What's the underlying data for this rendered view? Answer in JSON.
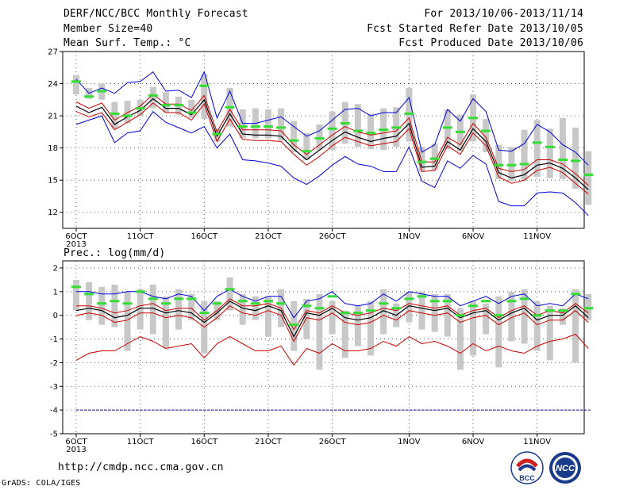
{
  "header": {
    "title": "DERF/NCC/BCC Monthly Forecast",
    "member_size": "Member Size=40",
    "variable": "Mean Surf. Temp.: °C",
    "forecast_period": "For 2013/10/06-2013/11/14",
    "started_refer": "Fcst Started Refer Date 2013/10/05",
    "produced": "Fcst Produced Date 2013/10/06"
  },
  "footer": {
    "url": "http://cmdp.ncc.cma.gov.cn",
    "grads": "GrADS: COLA/IGES",
    "logo_bcc_text": "BCC",
    "logo_ncc_text": "NCC"
  },
  "colors": {
    "envelope": "#0000dd",
    "spread": "#cc0000",
    "mean": "#000000",
    "median": "#33dd33",
    "box": "#c8c8c8",
    "reference": "#0000aa",
    "grid": "#333333"
  },
  "chart_data": [
    {
      "type": "line",
      "subtitle": "Mean Surf. Temp.: °C",
      "ylim": [
        10.5,
        27
      ],
      "yticks": [
        12,
        15,
        18,
        21,
        24,
        27
      ],
      "xticks": [
        {
          "day": 0,
          "label": "6OCT",
          "sublabel": "2013"
        },
        {
          "day": 5,
          "label": "11OCT"
        },
        {
          "day": 10,
          "label": "16OCT"
        },
        {
          "day": 15,
          "label": "21OCT"
        },
        {
          "day": 20,
          "label": "26OCT"
        },
        {
          "day": 26,
          "label": "1NOV"
        },
        {
          "day": 31,
          "label": "6NOV"
        },
        {
          "day": 36,
          "label": "11NOV"
        }
      ],
      "grid": true,
      "box_low": [
        23.0,
        22.6,
        22.5,
        19.8,
        20.3,
        21.0,
        21.7,
        21.3,
        21.1,
        20.8,
        20.7,
        18.6,
        20.0,
        18.9,
        18.9,
        18.9,
        18.7,
        17.6,
        16.9,
        17.8,
        17.8,
        18.4,
        18.1,
        17.9,
        17.8,
        18.1,
        18.6,
        15.8,
        15.9,
        17.9,
        17.7,
        18.6,
        17.6,
        15.1,
        14.9,
        14.9,
        15.3,
        15.2,
        15.1,
        14.2,
        12.7
      ],
      "box_high": [
        24.8,
        23.6,
        24.0,
        22.3,
        22.4,
        22.5,
        23.7,
        23.2,
        22.8,
        22.5,
        24.9,
        19.8,
        23.6,
        21.6,
        21.7,
        21.6,
        21.7,
        20.5,
        19.4,
        20.2,
        21.4,
        22.3,
        22.1,
        21.2,
        21.7,
        21.8,
        23.6,
        18.1,
        18.4,
        21.6,
        21.1,
        23.0,
        20.7,
        18.3,
        18.1,
        19.7,
        20.6,
        19.8,
        20.8,
        19.9,
        17.7
      ],
      "median": [
        24.2,
        22.8,
        23.3,
        21.2,
        21.0,
        21.7,
        22.9,
        22.0,
        22.0,
        21.3,
        23.8,
        19.3,
        21.8,
        20.0,
        20.0,
        20.0,
        19.9,
        18.7,
        17.7,
        18.9,
        19.8,
        20.3,
        19.6,
        19.4,
        19.7,
        19.9,
        21.2,
        16.7,
        17.0,
        19.9,
        19.5,
        20.8,
        19.6,
        16.4,
        16.4,
        16.5,
        18.5,
        18.1,
        16.9,
        16.8,
        15.5
      ],
      "max": [
        24.4,
        23.1,
        23.6,
        23.1,
        24.1,
        24.2,
        25.1,
        23.3,
        23.4,
        22.7,
        25.1,
        20.8,
        23.3,
        20.3,
        20.3,
        20.6,
        20.9,
        20.0,
        19.1,
        19.6,
        20.6,
        21.6,
        21.7,
        21.0,
        21.3,
        21.3,
        22.7,
        17.6,
        18.3,
        21.6,
        20.5,
        22.6,
        21.4,
        17.8,
        17.7,
        18.4,
        20.2,
        19.5,
        18.3,
        17.6,
        16.4
      ],
      "high": [
        22.3,
        21.7,
        22.2,
        20.6,
        21.3,
        21.9,
        23.0,
        22.1,
        22.1,
        21.5,
        22.9,
        19.5,
        21.6,
        19.7,
        19.7,
        19.7,
        19.6,
        18.3,
        17.4,
        18.3,
        19.2,
        20.0,
        19.5,
        19.2,
        19.4,
        19.6,
        20.8,
        16.7,
        16.7,
        19.0,
        18.3,
        20.3,
        19.0,
        16.1,
        15.8,
        16.0,
        16.9,
        16.9,
        16.5,
        15.6,
        14.5
      ],
      "mean": [
        21.9,
        21.3,
        21.8,
        20.2,
        20.9,
        21.5,
        22.6,
        21.7,
        21.7,
        21.1,
        22.5,
        19.1,
        21.2,
        19.3,
        19.2,
        19.2,
        19.1,
        17.9,
        16.9,
        17.8,
        18.7,
        19.5,
        19.0,
        18.6,
        18.9,
        19.1,
        20.3,
        16.2,
        16.3,
        18.6,
        17.8,
        19.8,
        18.6,
        15.7,
        15.2,
        15.5,
        16.4,
        16.6,
        16.1,
        15.2,
        14.1
      ],
      "low": [
        21.4,
        20.9,
        21.3,
        19.7,
        20.4,
        21.1,
        22.2,
        21.3,
        21.3,
        20.6,
        22.1,
        18.6,
        20.7,
        18.8,
        18.7,
        18.7,
        18.6,
        17.4,
        16.4,
        17.2,
        18.2,
        19.0,
        18.6,
        18.2,
        18.4,
        18.6,
        19.8,
        15.8,
        15.9,
        18.2,
        17.4,
        19.4,
        18.2,
        15.3,
        14.7,
        15.0,
        15.9,
        16.2,
        15.7,
        14.7,
        13.7
      ],
      "min": [
        20.2,
        20.6,
        21.0,
        18.5,
        19.4,
        19.6,
        21.4,
        20.4,
        19.9,
        19.4,
        20.0,
        18.0,
        19.3,
        16.9,
        16.8,
        16.6,
        16.3,
        15.2,
        14.6,
        15.4,
        16.4,
        17.2,
        16.5,
        16.3,
        15.8,
        15.8,
        18.1,
        14.9,
        14.3,
        16.8,
        16.1,
        17.3,
        16.5,
        13.0,
        12.6,
        12.6,
        13.8,
        13.9,
        13.8,
        12.9,
        11.7
      ]
    },
    {
      "type": "line",
      "subtitle": "Prec.: log(mm/d)",
      "ylim": [
        -5,
        2.3
      ],
      "yticks": [
        -5,
        -4,
        -3,
        -2,
        -1,
        0,
        1,
        2
      ],
      "xticks": [
        {
          "day": 0,
          "label": "6OCT",
          "sublabel": "2013"
        },
        {
          "day": 5,
          "label": "11OCT"
        },
        {
          "day": 10,
          "label": "16OCT"
        },
        {
          "day": 15,
          "label": "21OCT"
        },
        {
          "day": 20,
          "label": "26OCT"
        },
        {
          "day": 26,
          "label": "1NOV"
        },
        {
          "day": 31,
          "label": "6NOV"
        },
        {
          "day": 36,
          "label": "11NOV"
        }
      ],
      "grid": true,
      "reference_value": -4,
      "box_low": [
        0.2,
        -0.2,
        -0.4,
        -0.5,
        -1.5,
        -0.6,
        -0.8,
        -1.4,
        -0.6,
        -0.2,
        -1.6,
        -0.2,
        0.2,
        -0.4,
        -0.2,
        -0.9,
        -0.5,
        -1.5,
        -1.0,
        -2.3,
        -0.8,
        -1.8,
        -1.3,
        -1.7,
        -0.8,
        -0.5,
        -0.3,
        -0.6,
        -0.7,
        -0.9,
        -2.3,
        -1.7,
        -0.8,
        -2.2,
        -1.1,
        -1.2,
        -1.5,
        -1.9,
        -0.4,
        -2.0,
        -0.2
      ],
      "box_high": [
        1.5,
        1.4,
        1.2,
        1.3,
        1.0,
        1.1,
        1.3,
        0.8,
        1.1,
        0.9,
        0.6,
        0.6,
        1.6,
        0.9,
        0.8,
        0.8,
        1.1,
        0.6,
        0.7,
        0.9,
        0.6,
        0.2,
        0.4,
        0.6,
        1.1,
        0.5,
        1.0,
        1.0,
        0.9,
        0.9,
        0.3,
        0.6,
        0.5,
        0.8,
        1.0,
        1.1,
        0.6,
        0.4,
        0.3,
        1.1,
        0.9
      ],
      "median": [
        1.2,
        0.9,
        0.5,
        0.6,
        0.5,
        1.0,
        0.7,
        0.5,
        0.7,
        0.7,
        0.1,
        0.5,
        1.1,
        0.6,
        0.5,
        0.6,
        0.5,
        -0.4,
        0.4,
        0.3,
        0.8,
        0.1,
        0.1,
        0.2,
        0.5,
        0.3,
        0.7,
        0.8,
        0.6,
        0.6,
        0.0,
        0.4,
        0.6,
        0.0,
        0.6,
        0.7,
        0.0,
        0.2,
        0.2,
        0.9,
        0.3
      ],
      "max": [
        1.0,
        1.0,
        0.9,
        0.9,
        1.0,
        1.0,
        0.8,
        0.7,
        0.9,
        0.8,
        0.2,
        0.8,
        1.1,
        0.8,
        0.6,
        0.8,
        0.8,
        -0.1,
        0.6,
        0.7,
        1.0,
        0.5,
        0.4,
        0.5,
        0.9,
        0.6,
        1.0,
        0.9,
        0.8,
        0.8,
        0.4,
        0.6,
        0.8,
        0.5,
        0.8,
        0.9,
        0.4,
        0.5,
        0.4,
        0.9,
        0.7
      ],
      "high": [
        0.4,
        0.4,
        0.3,
        0.1,
        0.2,
        0.4,
        0.5,
        0.2,
        0.3,
        0.3,
        -0.2,
        0.2,
        0.7,
        0.4,
        0.4,
        0.5,
        0.3,
        -0.6,
        0.2,
        0.1,
        0.4,
        0.1,
        0.0,
        0.1,
        0.3,
        0.2,
        0.5,
        0.4,
        0.3,
        0.4,
        0.0,
        0.2,
        0.3,
        -0.1,
        0.2,
        0.4,
        0.0,
        0.2,
        0.1,
        0.5,
        0.1
      ],
      "mean": [
        0.2,
        0.3,
        0.2,
        -0.1,
        0.0,
        0.3,
        0.3,
        0.1,
        0.2,
        0.1,
        -0.3,
        0.1,
        0.6,
        0.3,
        0.2,
        0.4,
        0.2,
        -0.9,
        0.1,
        0.0,
        0.3,
        -0.1,
        -0.2,
        -0.1,
        0.2,
        0.0,
        0.4,
        0.3,
        0.2,
        0.3,
        -0.1,
        0.1,
        0.2,
        -0.2,
        0.1,
        0.3,
        -0.2,
        0.0,
        0.0,
        0.4,
        -0.1
      ],
      "low": [
        0.0,
        0.1,
        0.0,
        -0.3,
        -0.2,
        0.1,
        0.1,
        -0.1,
        0.0,
        -0.1,
        -0.5,
        -0.1,
        0.4,
        0.1,
        0.0,
        0.2,
        0.0,
        -1.1,
        -0.1,
        -0.2,
        0.1,
        -0.3,
        -0.4,
        -0.3,
        0.0,
        -0.2,
        0.2,
        0.1,
        0.0,
        0.1,
        -0.3,
        -0.1,
        0.0,
        -0.4,
        -0.1,
        0.1,
        -0.4,
        -0.2,
        -0.2,
        0.2,
        -0.3
      ],
      "min": [
        -1.9,
        -1.6,
        -1.5,
        -1.5,
        -1.2,
        -0.9,
        -1.1,
        -1.4,
        -1.3,
        -1.2,
        -1.8,
        -1.2,
        -0.9,
        -1.2,
        -1.5,
        -1.5,
        -1.3,
        -2.1,
        -1.4,
        -1.6,
        -1.2,
        -1.5,
        -1.5,
        -1.4,
        -1.1,
        -1.3,
        -0.9,
        -1.2,
        -1.1,
        -1.3,
        -1.6,
        -1.2,
        -1.5,
        -1.3,
        -1.5,
        -1.6,
        -1.3,
        -1.1,
        -1.0,
        -0.8,
        -1.4
      ]
    }
  ]
}
